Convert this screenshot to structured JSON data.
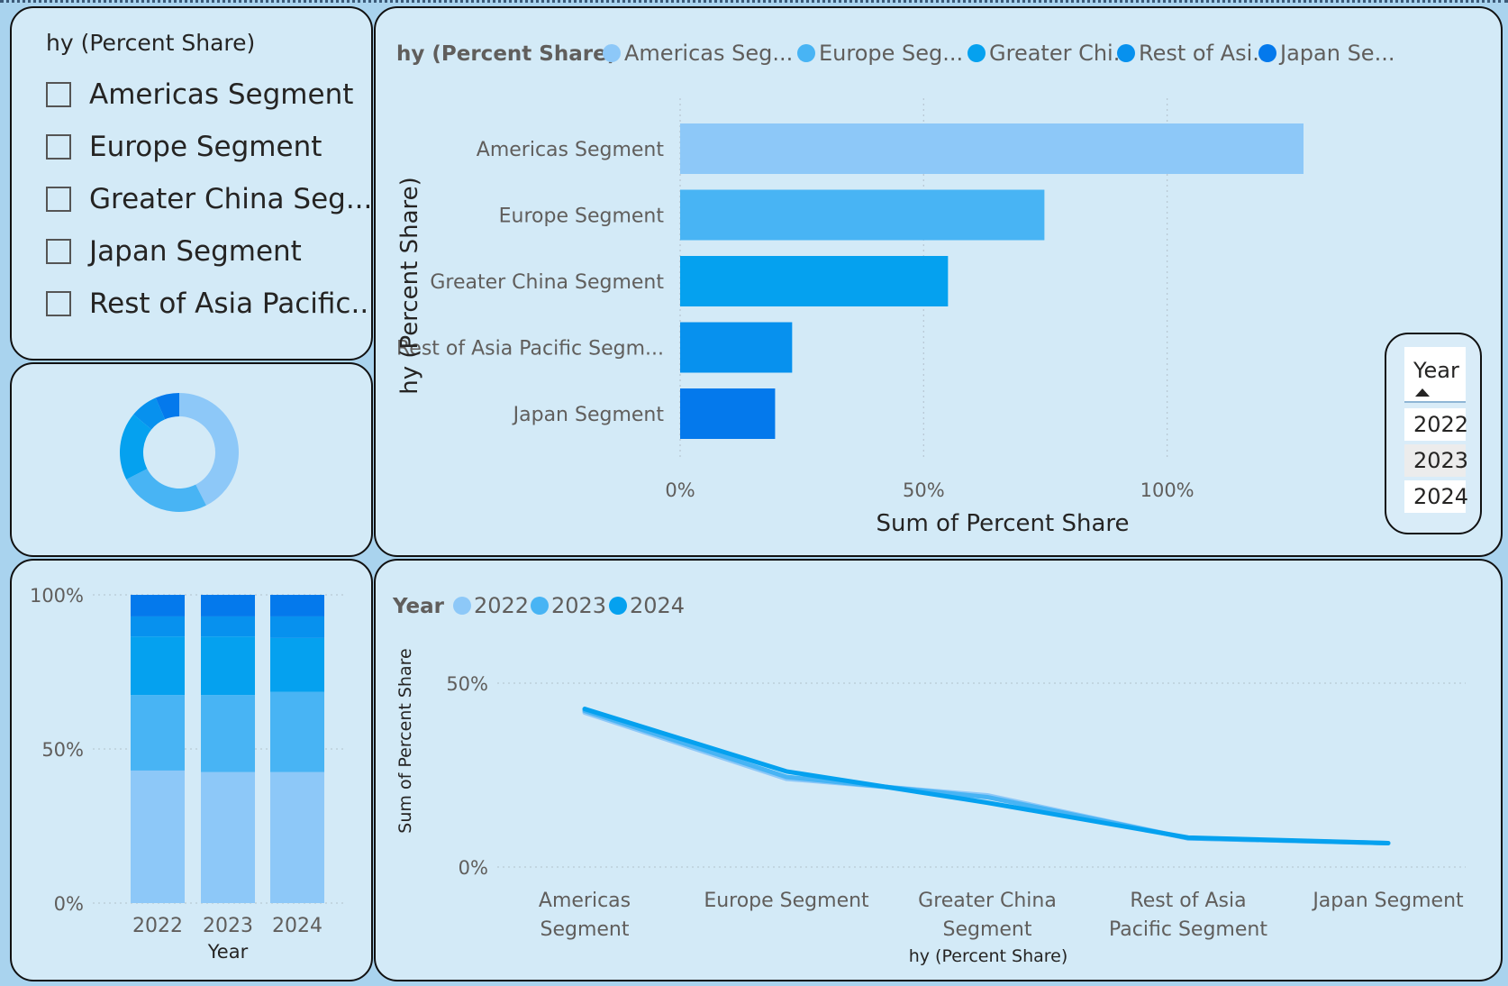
{
  "colors": {
    "seg1": "#8dc8f8",
    "seg2": "#48b4f4",
    "seg3": "#05a1ef",
    "seg4": "#0791ee",
    "seg5": "#0479ec",
    "year2022": "#8dc8f8",
    "year2023": "#48b4f4",
    "year2024": "#05a1ef",
    "panel_bg": "#d3eaf7",
    "page_bg": "#a9d3ee"
  },
  "slicer": {
    "title": "hy (Percent Share)",
    "items": [
      {
        "label": "Americas Segment",
        "checked": false
      },
      {
        "label": "Europe Segment",
        "checked": false
      },
      {
        "label": "Greater China Seg...",
        "checked": false
      },
      {
        "label": "Japan Segment",
        "checked": false
      },
      {
        "label": "Rest of Asia Pacific...",
        "checked": false
      }
    ]
  },
  "year_slicer": {
    "title": "Year",
    "items": [
      "2022",
      "2023",
      "2024"
    ],
    "hovered": "2023"
  },
  "chart_data": [
    {
      "id": "donut",
      "type": "pie",
      "donut": true,
      "categories": [
        "Americas Segment",
        "Europe Segment",
        "Greater China Segment",
        "Rest of Asia Pacific Segment",
        "Japan Segment"
      ],
      "values": [
        42.5,
        25.0,
        18.5,
        7.5,
        6.5
      ]
    },
    {
      "id": "bar",
      "type": "bar",
      "orientation": "horizontal",
      "title": "",
      "legend_title": "hy (Percent Share)",
      "legend": [
        "Americas Seg...",
        "Europe Seg...",
        "Greater Chi...",
        "Rest of Asi...",
        "Japan Se..."
      ],
      "legend_placement": "top-left",
      "categories": [
        "Americas Segment",
        "Europe Segment",
        "Greater China Segment",
        "Rest of Asia Pacific Segm...",
        "Japan Segment"
      ],
      "values": [
        128,
        74.8,
        55,
        23,
        19.5
      ],
      "xlabel": "Sum of Percent Share",
      "ylabel": "hy (Percent Share)",
      "xlim": [
        0,
        128
      ],
      "xticks": [
        "0%",
        "50%",
        "100%"
      ],
      "xtick_values": [
        0,
        50,
        100
      ],
      "grid": true
    },
    {
      "id": "stacked",
      "type": "bar",
      "stacked": "percent",
      "categories": [
        "2022",
        "2023",
        "2024"
      ],
      "series": [
        {
          "values": [
            43.0,
            42.5,
            42.5
          ]
        },
        {
          "values": [
            24.5,
            25.0,
            26.0
          ]
        },
        {
          "values": [
            19.0,
            19.0,
            17.5
          ]
        },
        {
          "values": [
            6.5,
            6.5,
            7.0
          ]
        },
        {
          "values": [
            7.0,
            7.0,
            7.0
          ]
        }
      ],
      "xlabel": "Year",
      "ylabel": "",
      "ylim": [
        0,
        100
      ],
      "yticks": [
        "0%",
        "50%",
        "100%"
      ],
      "ytick_values": [
        0,
        50,
        100
      ],
      "grid": true
    },
    {
      "id": "line",
      "type": "line",
      "legend_title": "Year",
      "legend_placement": "top-left",
      "categories": [
        "Americas Segment",
        "Europe Segment",
        "Greater China Segment",
        "Rest of Asia Pacific Segment",
        "Japan Segment"
      ],
      "category_labels": [
        [
          "Americas",
          "Segment"
        ],
        [
          "Europe Segment"
        ],
        [
          "Greater China",
          "Segment"
        ],
        [
          "Rest of Asia",
          "Pacific Segment"
        ],
        [
          "Japan Segment"
        ]
      ],
      "series": [
        {
          "name": "2022",
          "values": [
            42.0,
            24.0,
            19.5,
            7.8,
            6.5
          ]
        },
        {
          "name": "2023",
          "values": [
            42.5,
            24.5,
            19.0,
            7.8,
            6.5
          ]
        },
        {
          "name": "2024",
          "values": [
            43.0,
            26.0,
            17.5,
            8.0,
            6.5
          ]
        }
      ],
      "xlabel": "hy (Percent Share)",
      "ylabel": "Sum of Percent Share",
      "ylim": [
        0,
        50
      ],
      "yticks": [
        "0%",
        "50%"
      ],
      "ytick_values": [
        0,
        50
      ],
      "grid": true
    }
  ]
}
